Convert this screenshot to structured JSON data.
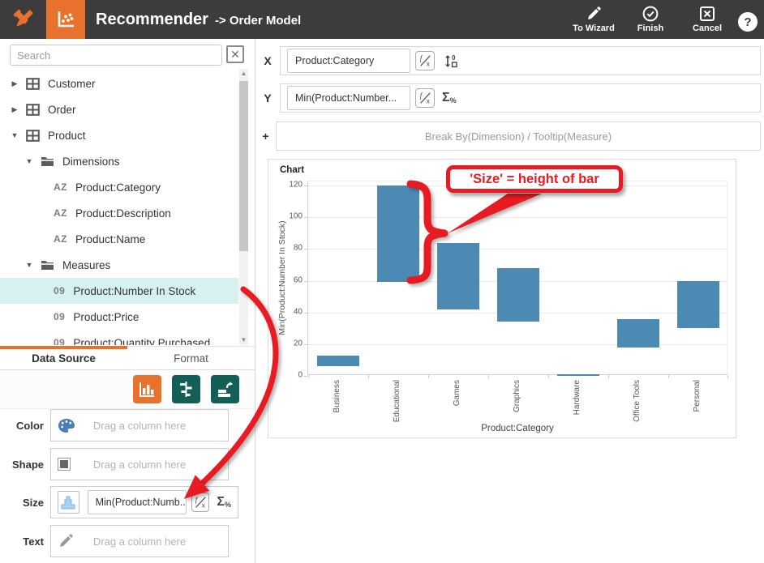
{
  "header": {
    "title": "Recommender",
    "subtitle": "-> Order Model",
    "actions": [
      {
        "label": "To Wizard",
        "icon": "pencil-icon"
      },
      {
        "label": "Finish",
        "icon": "check-circle-icon"
      },
      {
        "label": "Cancel",
        "icon": "close-square-icon"
      }
    ],
    "help_label": "?"
  },
  "sidebar": {
    "search_placeholder": "Search",
    "close_glyph": "✕",
    "type_badges": {
      "dimension": "AZ",
      "measure": "09"
    },
    "tree": [
      {
        "label": "Customer",
        "type": "table",
        "level": 0,
        "expanded": false
      },
      {
        "label": "Order",
        "type": "table",
        "level": 0,
        "expanded": false
      },
      {
        "label": "Product",
        "type": "table",
        "level": 0,
        "expanded": true
      },
      {
        "label": "Dimensions",
        "type": "folder",
        "level": 1,
        "expanded": true
      },
      {
        "label": "Product:Category",
        "type": "dimension",
        "level": 2
      },
      {
        "label": "Product:Description",
        "type": "dimension",
        "level": 2
      },
      {
        "label": "Product:Name",
        "type": "dimension",
        "level": 2
      },
      {
        "label": "Measures",
        "type": "folder",
        "level": 1,
        "expanded": true
      },
      {
        "label": "Product:Number In Stock",
        "type": "measure",
        "level": 2,
        "selected": true
      },
      {
        "label": "Product:Price",
        "type": "measure",
        "level": 2
      },
      {
        "label": "Product:Quantity Purchased",
        "type": "measure",
        "level": 2
      }
    ],
    "tabs": [
      {
        "label": "Data Source",
        "active": true
      },
      {
        "label": "Format",
        "active": false
      }
    ],
    "chart_type_buttons": [
      {
        "name": "bar-chart",
        "active": true
      },
      {
        "name": "tornado-chart",
        "active": false
      },
      {
        "name": "rotate-chart",
        "active": false
      }
    ],
    "fields": [
      {
        "label": "Color",
        "icon": "palette-icon",
        "placeholder": "Drag a column here"
      },
      {
        "label": "Shape",
        "icon": "shape-square-icon",
        "placeholder": "Drag a column here"
      },
      {
        "label": "Size",
        "icon": "histogram-icon",
        "value": "Min(Product:Numb...",
        "has_fx": true,
        "has_sigma": true
      },
      {
        "label": "Text",
        "icon": "pencil-gray-icon",
        "placeholder": "Drag a column here"
      }
    ],
    "sigma_glyph": "Σ",
    "percent_glyph": "%"
  },
  "axes": {
    "x": {
      "key": "X",
      "value": "Product:Category",
      "has_fx": true,
      "has_sort": true
    },
    "y": {
      "key": "Y",
      "value": "Min(Product:Number...",
      "has_fx": true,
      "has_sigma": true
    },
    "plus": {
      "key": "+",
      "placeholder": "Break By(Dimension) / Tooltip(Measure)"
    }
  },
  "chart_data": {
    "type": "bar",
    "subtype": "floating-range-bars",
    "title": "Chart",
    "categories": [
      "Business",
      "Educational",
      "Games",
      "Graphics",
      "Hardware",
      "Office Tools",
      "Personal"
    ],
    "series": [
      {
        "name": "Min(Product:Number In Stock)",
        "ranges": [
          [
            6,
            13
          ],
          [
            59,
            120
          ],
          [
            42,
            84
          ],
          [
            34,
            68
          ],
          [
            0,
            1
          ],
          [
            18,
            36
          ],
          [
            30,
            60
          ]
        ]
      }
    ],
    "xlabel": "Product:Category",
    "ylabel": "Min(Product:Number In Stock)",
    "ylim": [
      0,
      120
    ],
    "yticks": [
      0,
      20,
      40,
      60,
      80,
      100,
      120
    ],
    "grid": true,
    "bar_color": "#4c8ab4"
  },
  "annotation": {
    "callout_text": "'Size' = height of bar",
    "color": "#e81b22"
  }
}
